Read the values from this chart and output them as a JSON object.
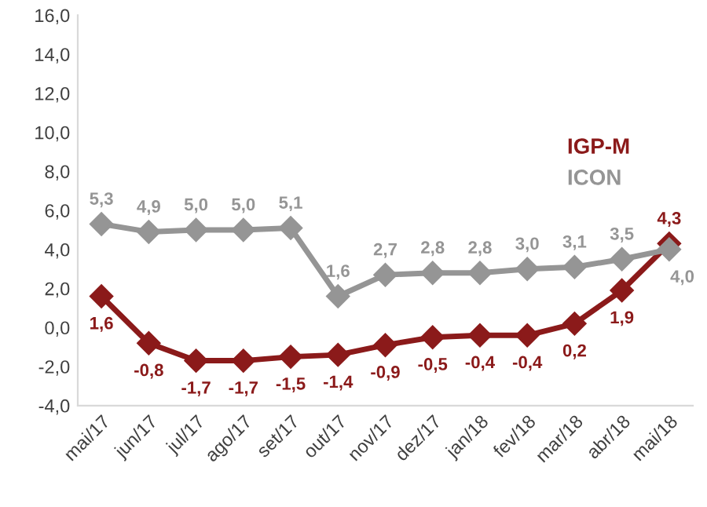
{
  "chart_data": {
    "type": "line",
    "categories": [
      "mai/17",
      "jun/17",
      "jul/17",
      "ago/17",
      "set/17",
      "out/17",
      "nov/17",
      "dez/17",
      "jan/18",
      "fev/18",
      "mar/18",
      "abr/18",
      "mai/18"
    ],
    "series": [
      {
        "name": "IGP-M",
        "color": "#8b1a1a",
        "values": [
          1.6,
          -0.8,
          -1.7,
          -1.7,
          -1.5,
          -1.4,
          -0.9,
          -0.5,
          -0.4,
          -0.4,
          0.2,
          1.9,
          4.3
        ],
        "value_labels": [
          "1,6",
          "-0,8",
          "-1,7",
          "-1,7",
          "-1,5",
          "-1,4",
          "-0,9",
          "-0,5",
          "-0,4",
          "-0,4",
          "0,2",
          "1,9",
          "4,3"
        ]
      },
      {
        "name": "ICON",
        "color": "#959595",
        "values": [
          5.3,
          4.9,
          5.0,
          5.0,
          5.1,
          1.6,
          2.7,
          2.8,
          2.8,
          3.0,
          3.1,
          3.5,
          4.0
        ],
        "value_labels": [
          "5,3",
          "4,9",
          "5,0",
          "5,0",
          "5,1",
          "1,6",
          "2,7",
          "2,8",
          "2,8",
          "3,0",
          "3,1",
          "3,5",
          "4,0"
        ]
      }
    ],
    "ylim": [
      -4,
      16
    ],
    "yticks": [
      {
        "value": -4,
        "label": "-4,0"
      },
      {
        "value": -2,
        "label": "-2,0"
      },
      {
        "value": 0,
        "label": "0,0"
      },
      {
        "value": 2,
        "label": "2,0"
      },
      {
        "value": 4,
        "label": "4,0"
      },
      {
        "value": 6,
        "label": "6,0"
      },
      {
        "value": 8,
        "label": "8,0"
      },
      {
        "value": 10,
        "label": "10,0"
      },
      {
        "value": 12,
        "label": "12,0"
      },
      {
        "value": 14,
        "label": "14,0"
      },
      {
        "value": 16,
        "label": "16,0"
      }
    ],
    "grid": false,
    "legend": "right",
    "marker": "diamond",
    "line_style": "solid"
  }
}
